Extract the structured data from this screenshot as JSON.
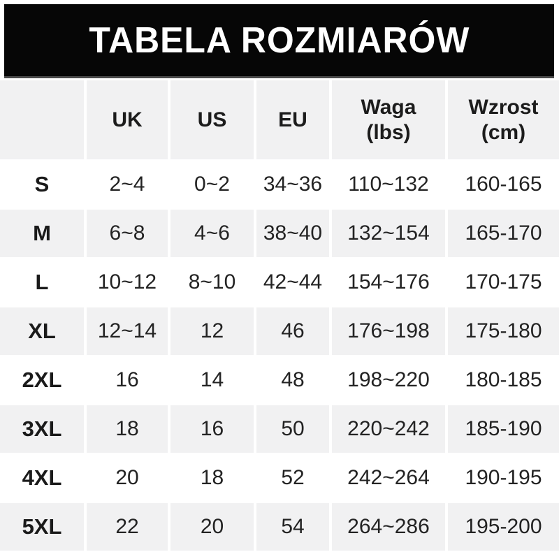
{
  "title": "TABELA ROZMIARÓW",
  "table": {
    "columns": [
      {
        "label": "",
        "sub": ""
      },
      {
        "label": "UK",
        "sub": ""
      },
      {
        "label": "US",
        "sub": ""
      },
      {
        "label": "EU",
        "sub": ""
      },
      {
        "label": "Waga",
        "sub": "(lbs)"
      },
      {
        "label": "Wzrost",
        "sub": "(cm)"
      }
    ],
    "rows": [
      {
        "size": "S",
        "uk": "2~4",
        "us": "0~2",
        "eu": "34~36",
        "waga": "110~132",
        "wzrost": "160-165"
      },
      {
        "size": "M",
        "uk": "6~8",
        "us": "4~6",
        "eu": "38~40",
        "waga": "132~154",
        "wzrost": "165-170"
      },
      {
        "size": "L",
        "uk": "10~12",
        "us": "8~10",
        "eu": "42~44",
        "waga": "154~176",
        "wzrost": "170-175"
      },
      {
        "size": "XL",
        "uk": "12~14",
        "us": "12",
        "eu": "46",
        "waga": "176~198",
        "wzrost": "175-180"
      },
      {
        "size": "2XL",
        "uk": "16",
        "us": "14",
        "eu": "48",
        "waga": "198~220",
        "wzrost": "180-185"
      },
      {
        "size": "3XL",
        "uk": "18",
        "us": "16",
        "eu": "50",
        "waga": "220~242",
        "wzrost": "185-190"
      },
      {
        "size": "4XL",
        "uk": "20",
        "us": "18",
        "eu": "52",
        "waga": "242~264",
        "wzrost": "190-195"
      },
      {
        "size": "5XL",
        "uk": "22",
        "us": "20",
        "eu": "54",
        "waga": "264~286",
        "wzrost": "195-200"
      }
    ]
  },
  "colors": {
    "banner_bg": "#060606",
    "banner_text": "#ffffff",
    "row_alt_bg": "#f1f1f2",
    "text": "#232323"
  }
}
